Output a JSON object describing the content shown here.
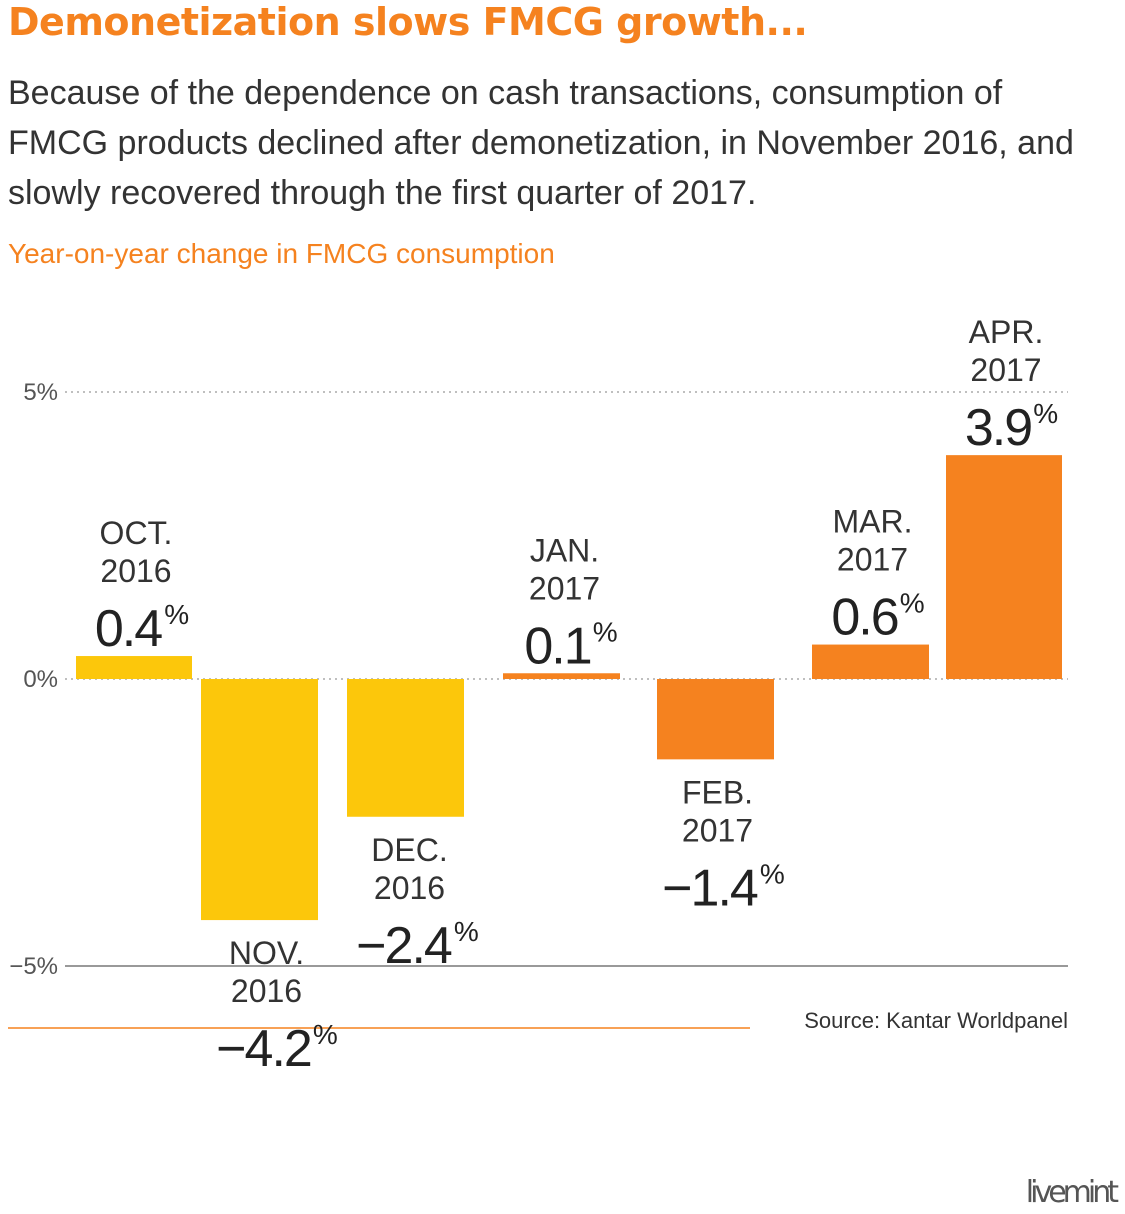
{
  "title": "Demonetization slows FMCG growth...",
  "subtitle": "Because of the dependence on cash transactions, consumption of FMCG products declined after demonetization, in November 2016, and slowly recovered through the first quarter of 2017.",
  "chart_heading": "Year-on-year change in FMCG consumption",
  "source": "Source: Kantar Worldpanel",
  "logo_text": "livemint",
  "colors": {
    "accent": "#f5821f",
    "bar_2016": "#fcc70b",
    "bar_2017": "#f5821f",
    "text": "#333333",
    "value_text": "#222222"
  },
  "chart_data": {
    "type": "bar",
    "categories": [
      "OCT.|2016",
      "NOV.|2016",
      "DEC.|2016",
      "JAN.|2017",
      "FEB.|2017",
      "MAR.|2017",
      "APR.|2017"
    ],
    "category_month": [
      "OCT.",
      "NOV.",
      "DEC.",
      "JAN.",
      "FEB.",
      "MAR.",
      "APR."
    ],
    "category_year": [
      "2016",
      "2016",
      "2016",
      "2017",
      "2017",
      "2017",
      "2017"
    ],
    "values": [
      0.4,
      -4.2,
      -2.4,
      0.1,
      -1.4,
      0.6,
      3.9
    ],
    "value_labels": [
      "0.4",
      "−4.2",
      "−2.4",
      "0.1",
      "−1.4",
      "0.6",
      "3.9"
    ],
    "value_unit": "%",
    "bar_colors": [
      "#fcc70b",
      "#fcc70b",
      "#fcc70b",
      "#f5821f",
      "#f5821f",
      "#f5821f",
      "#f5821f"
    ],
    "ylim": [
      -5,
      5
    ],
    "yticks": [
      5,
      0,
      -5
    ],
    "ytick_labels": [
      "5%",
      "0%",
      "−5%"
    ],
    "xlabel": "",
    "ylabel": "",
    "grid": true
  }
}
